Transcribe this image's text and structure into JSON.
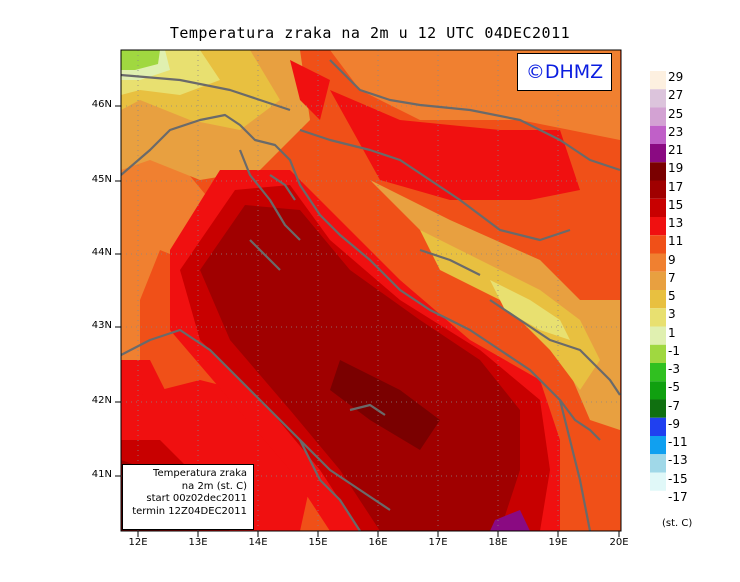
{
  "title": "Temperatura zraka na 2m u 12 UTC 04DEC2011",
  "logo": "©DHMZ",
  "info_box": {
    "line1": "Temperatura zraka",
    "line2": "na 2m (st. C)",
    "line3": "start 00z02dec2011",
    "line4": "termin 12Z04DEC2011"
  },
  "lat_labels": [
    "46N",
    "45N",
    "44N",
    "43N",
    "42N",
    "41N"
  ],
  "lon_labels": [
    "12E",
    "13E",
    "14E",
    "15E",
    "16E",
    "17E",
    "18E",
    "19E",
    "20E"
  ],
  "colorbar": {
    "units": "(st. C)",
    "levels": [
      {
        "label": "29",
        "color": "#fdf0e0"
      },
      {
        "label": "27",
        "color": "#dcc4dc"
      },
      {
        "label": "25",
        "color": "#d3a2d3"
      },
      {
        "label": "23",
        "color": "#c060c8"
      },
      {
        "label": "21",
        "color": "#8a0a82"
      },
      {
        "label": "19",
        "color": "#7a0000"
      },
      {
        "label": "17",
        "color": "#a00000"
      },
      {
        "label": "15",
        "color": "#c80000"
      },
      {
        "label": "13",
        "color": "#f01010"
      },
      {
        "label": "11",
        "color": "#f05018"
      },
      {
        "label": "9",
        "color": "#f08030"
      },
      {
        "label": "7",
        "color": "#e8a040"
      },
      {
        "label": "5",
        "color": "#e8c040"
      },
      {
        "label": "3",
        "color": "#e8e070"
      },
      {
        "label": "1",
        "color": "#e0f0b0"
      },
      {
        "label": "-1",
        "color": "#a0d840"
      },
      {
        "label": "-3",
        "color": "#30c020"
      },
      {
        "label": "-5",
        "color": "#10a010"
      },
      {
        "label": "-7",
        "color": "#107010"
      },
      {
        "label": "-9",
        "color": "#2040f0"
      },
      {
        "label": "-11",
        "color": "#10a0f0"
      },
      {
        "label": "-13",
        "color": "#a0d8e8"
      },
      {
        "label": "-15",
        "color": "#e0f8f8"
      },
      {
        "label": "-17",
        "color": ""
      }
    ]
  },
  "map_colors": {
    "t19": "#7a0000",
    "t17": "#a00000",
    "t15": "#c80000",
    "t13": "#f01010",
    "t11": "#f05018",
    "t9": "#f08030",
    "t7": "#e8a040",
    "t5": "#e8c040",
    "t3": "#e8e070",
    "t1": "#e0f0b0",
    "tm1": "#a0d840",
    "purple": "#8a0a82",
    "coast": "#6a6a6a"
  }
}
